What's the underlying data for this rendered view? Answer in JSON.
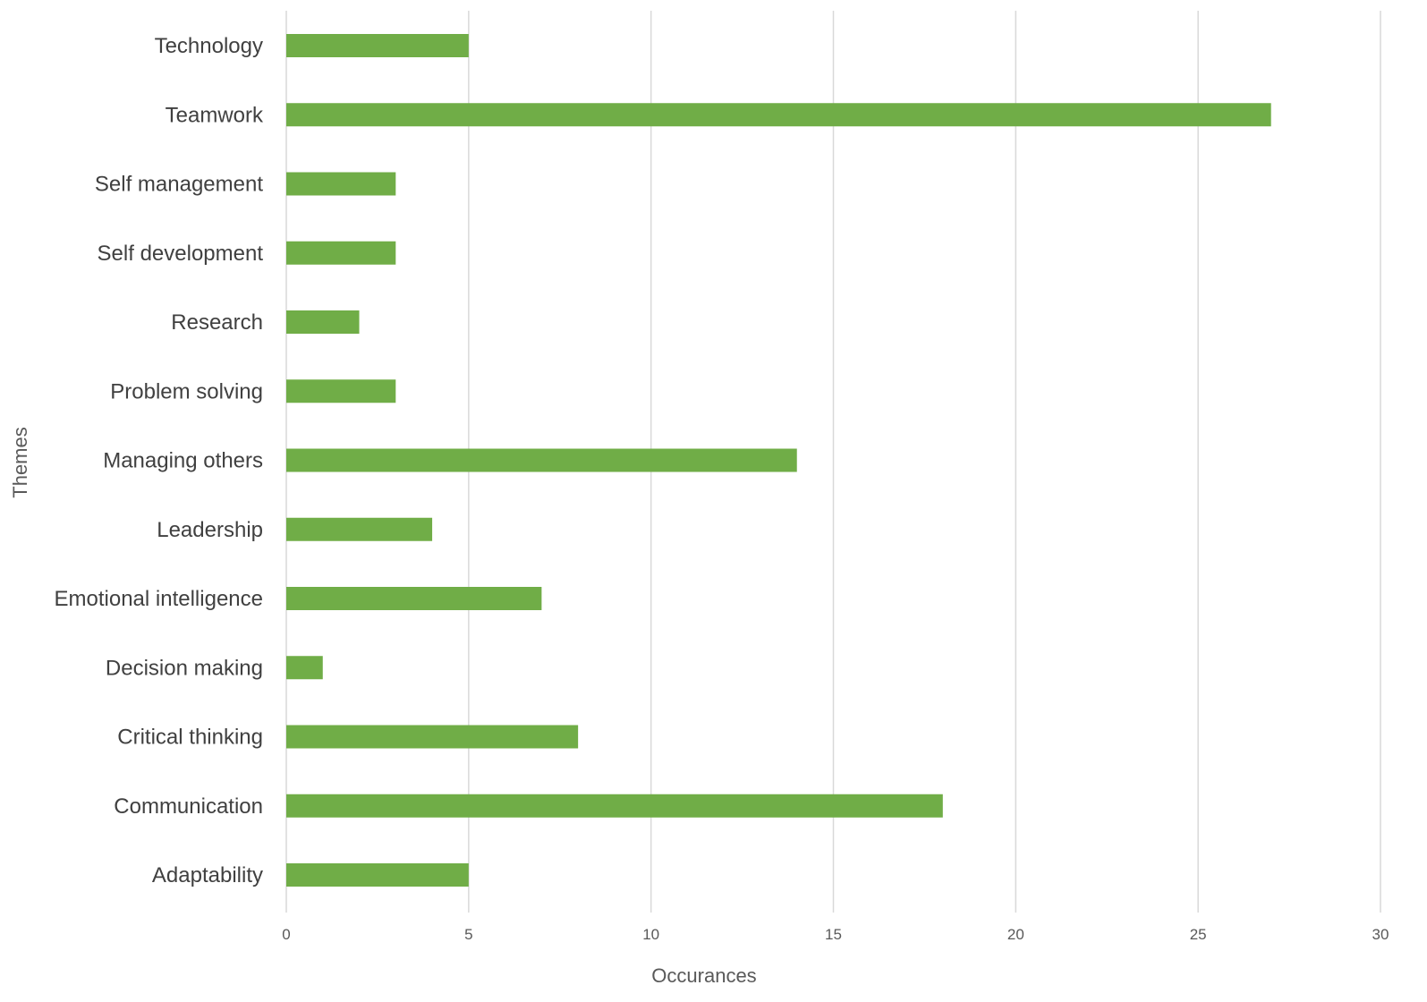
{
  "chart_data": {
    "type": "bar",
    "orientation": "horizontal",
    "categories": [
      "Adaptability",
      "Communication",
      "Critical thinking",
      "Decision making",
      "Emotional intelligence",
      "Leadership",
      "Managing others",
      "Problem solving",
      "Research",
      "Self development",
      "Self management",
      "Teamwork",
      "Technology"
    ],
    "values": [
      5,
      18,
      8,
      1,
      7,
      4,
      14,
      3,
      2,
      3,
      3,
      27,
      5
    ],
    "xlabel": "Occurances",
    "ylabel": "Themes",
    "xlim": [
      0,
      30
    ],
    "xticks": [
      0,
      5,
      10,
      15,
      20,
      25,
      30
    ],
    "grid": "vertical",
    "legend": "none",
    "bar_color": "#70ad47",
    "grid_color": "#d9d9d9"
  }
}
